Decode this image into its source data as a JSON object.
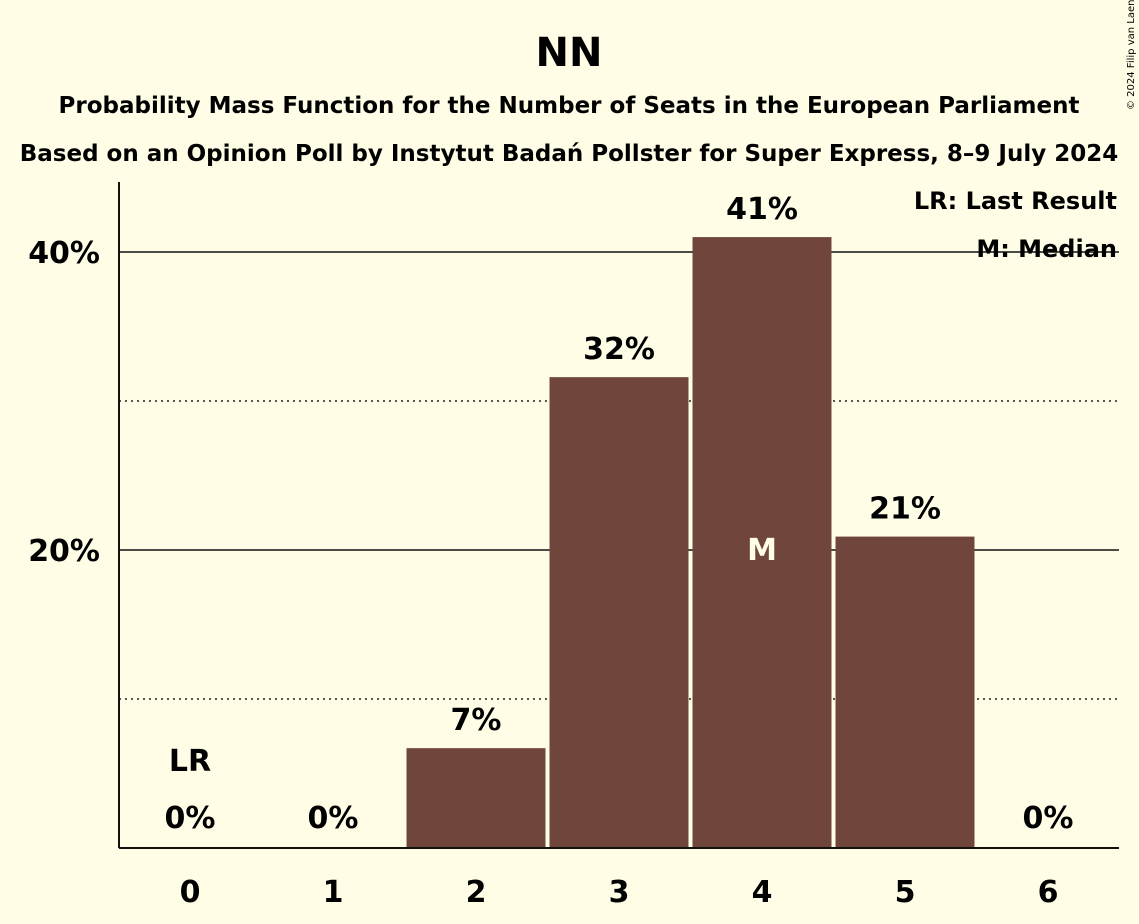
{
  "chart_data": {
    "type": "bar",
    "title": "NN",
    "subtitle": "Probability Mass Function for the Number of Seats in the European Parliament",
    "subtitle2": "Based on an Opinion Poll by Instytut Badań Pollster for Super Express, 8–9 July 2024",
    "copyright": "© 2024 Filip van Laenen",
    "categories": [
      "0",
      "1",
      "2",
      "3",
      "4",
      "5",
      "6"
    ],
    "values": [
      0,
      0,
      6.7,
      31.6,
      41.0,
      20.9,
      0
    ],
    "labels": [
      "0%",
      "0%",
      "7%",
      "32%",
      "41%",
      "21%",
      "0%"
    ],
    "ylim": [
      0,
      45
    ],
    "yticks": [
      {
        "value": 20,
        "label": "20%"
      },
      {
        "value": 40,
        "label": "40%"
      }
    ],
    "minor_gridlines": [
      10,
      30
    ],
    "last_result_index": 0,
    "last_result_mark": "LR",
    "median_index": 4,
    "median_mark": "M",
    "legend": [
      "LR: Last Result",
      "M: Median"
    ],
    "legend_position": "top-right",
    "bar_color": "#70463C",
    "background": "#FFFDE6"
  }
}
